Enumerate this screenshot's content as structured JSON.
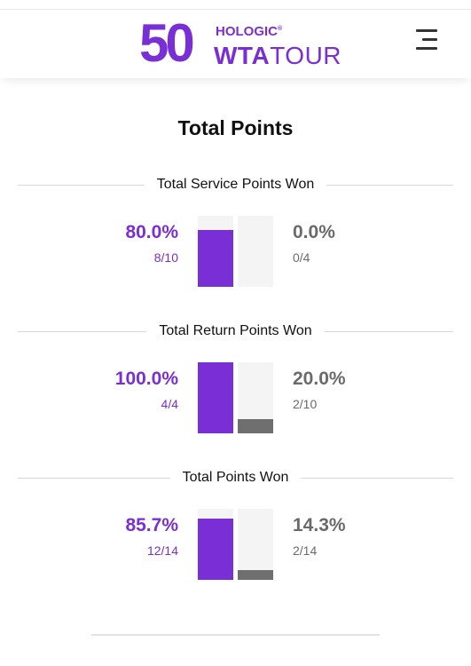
{
  "header": {
    "logo_number": "50",
    "logo_sponsor": "HOLOGIC",
    "logo_sponsor_mark": "®",
    "logo_brand_bold": "WTA",
    "logo_brand_light": "TOUR",
    "brand_color": "#7a2fd6",
    "menu_icon": "hamburger-menu-icon"
  },
  "section": {
    "title": "Total Points"
  },
  "stats": [
    {
      "title": "Total Service Points Won",
      "left": {
        "percent": "80.0%",
        "fraction": "8/10",
        "value": 0.8
      },
      "right": {
        "percent": "0.0%",
        "fraction": "0/4",
        "value": 0.0
      }
    },
    {
      "title": "Total Return Points Won",
      "left": {
        "percent": "100.0%",
        "fraction": "4/4",
        "value": 1.0
      },
      "right": {
        "percent": "20.0%",
        "fraction": "2/10",
        "value": 0.2
      }
    },
    {
      "title": "Total Points Won",
      "left": {
        "percent": "85.7%",
        "fraction": "12/14",
        "value": 0.857
      },
      "right": {
        "percent": "14.3%",
        "fraction": "2/14",
        "value": 0.143
      }
    }
  ],
  "colors": {
    "player_one": "#7a2fd6",
    "player_two": "#6f6f6f",
    "bar_track": "#f4f4f4"
  }
}
